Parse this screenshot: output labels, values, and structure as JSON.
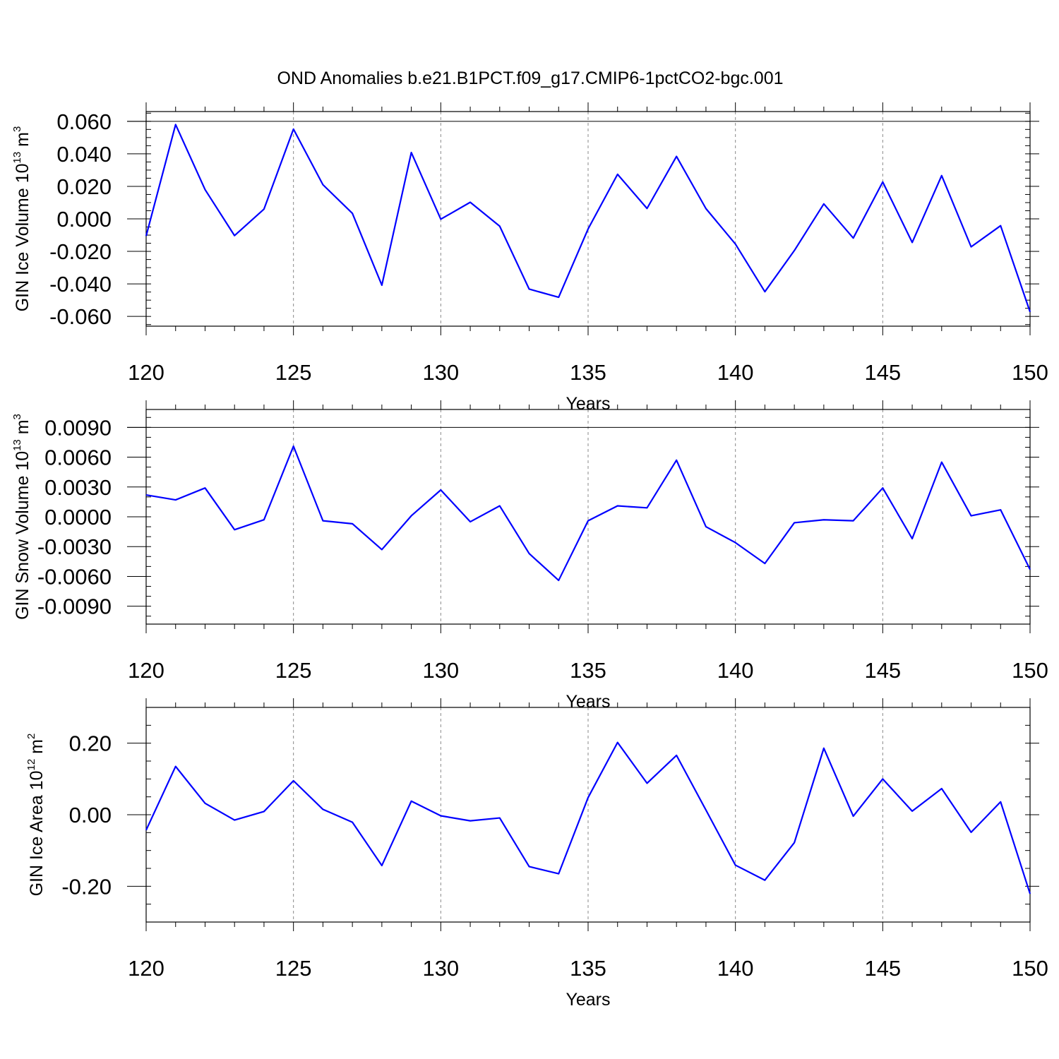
{
  "title": "OND Anomalies b.e21.B1PCT.f09_g17.CMIP6-1pctCO2-bgc.001",
  "colors": {
    "line": "#0000ff",
    "axis": "#000000",
    "grid": "#888888",
    "background": "#ffffff"
  },
  "chart_data": [
    {
      "type": "line",
      "xlabel": "Years",
      "ylabel": {
        "text": "GIN Ice Volume 10",
        "sup": "13",
        "unit": " m",
        "unit_sup": "3"
      },
      "xlim": [
        120,
        150
      ],
      "ylim": [
        -0.066,
        0.066
      ],
      "xticks": [
        "120",
        "125",
        "130",
        "135",
        "140",
        "145",
        "150"
      ],
      "yticks": [
        {
          "value": 0.06,
          "label": "0.060"
        },
        {
          "value": 0.04,
          "label": "0.040"
        },
        {
          "value": 0.02,
          "label": "0.020"
        },
        {
          "value": 0.0,
          "label": "0.000"
        },
        {
          "value": -0.02,
          "label": "-0.020"
        },
        {
          "value": -0.04,
          "label": "-0.040"
        },
        {
          "value": -0.06,
          "label": "-0.060"
        }
      ],
      "yminor_step": 0.005,
      "hline": 0.06,
      "x": [
        120,
        121,
        122,
        123,
        124,
        125,
        126,
        127,
        128,
        129,
        130,
        131,
        132,
        133,
        134,
        135,
        136,
        137,
        138,
        139,
        140,
        141,
        142,
        143,
        144,
        145,
        146,
        147,
        148,
        149,
        150
      ],
      "series": [
        {
          "values": [
            -0.0105,
            0.058,
            0.018,
            -0.0103,
            0.006,
            0.0552,
            0.021,
            0.0034,
            -0.0408,
            0.0408,
            -0.0002,
            0.0102,
            -0.0045,
            -0.0432,
            -0.0482,
            -0.0062,
            0.0274,
            0.0064,
            0.0384,
            0.0063,
            -0.0155,
            -0.0448,
            -0.0195,
            0.0092,
            -0.0118,
            0.0227,
            -0.0145,
            0.0266,
            -0.0172,
            -0.0042,
            -0.0572
          ]
        }
      ]
    },
    {
      "type": "line",
      "xlabel": "Years",
      "ylabel": {
        "text": "GIN Snow Volume 10",
        "sup": "13",
        "unit": " m",
        "unit_sup": "3"
      },
      "xlim": [
        120,
        150
      ],
      "ylim": [
        -0.0108,
        0.0108
      ],
      "xticks": [
        "120",
        "125",
        "130",
        "135",
        "140",
        "145",
        "150"
      ],
      "yticks": [
        {
          "value": 0.009,
          "label": "0.0090"
        },
        {
          "value": 0.006,
          "label": "0.0060"
        },
        {
          "value": 0.003,
          "label": "0.0030"
        },
        {
          "value": 0.0,
          "label": "0.0000"
        },
        {
          "value": -0.003,
          "label": "-0.0030"
        },
        {
          "value": -0.006,
          "label": "-0.0060"
        },
        {
          "value": -0.009,
          "label": "-0.0090"
        }
      ],
      "yminor_step": 0.001,
      "hline": 0.009,
      "x": [
        120,
        121,
        122,
        123,
        124,
        125,
        126,
        127,
        128,
        129,
        130,
        131,
        132,
        133,
        134,
        135,
        136,
        137,
        138,
        139,
        140,
        141,
        142,
        143,
        144,
        145,
        146,
        147,
        148,
        149,
        150
      ],
      "series": [
        {
          "values": [
            0.0022,
            0.0017,
            0.0029,
            -0.0013,
            -0.0003,
            0.0071,
            -0.0004,
            -0.0007,
            -0.0033,
            0.0001,
            0.0027,
            -0.0005,
            0.0011,
            -0.0037,
            -0.0064,
            -0.0004,
            0.0011,
            0.0009,
            0.0057,
            -0.001,
            -0.0026,
            -0.0047,
            -0.0006,
            -0.0003,
            -0.0004,
            0.0029,
            -0.0022,
            0.0055,
            0.0001,
            0.0007,
            -0.0053
          ]
        }
      ]
    },
    {
      "type": "line",
      "xlabel": "Years",
      "ylabel": {
        "text": "GIN Ice Area 10",
        "sup": "12",
        "unit": " m",
        "unit_sup": "2"
      },
      "xlim": [
        120,
        150
      ],
      "ylim": [
        -0.3,
        0.3
      ],
      "xticks": [
        "120",
        "125",
        "130",
        "135",
        "140",
        "145",
        "150"
      ],
      "yticks": [
        {
          "value": 0.2,
          "label": "0.20"
        },
        {
          "value": 0.0,
          "label": "0.00"
        },
        {
          "value": -0.2,
          "label": "-0.20"
        }
      ],
      "yminor_step": 0.05,
      "hline": null,
      "x": [
        120,
        121,
        122,
        123,
        124,
        125,
        126,
        127,
        128,
        129,
        130,
        131,
        132,
        133,
        134,
        135,
        136,
        137,
        138,
        139,
        140,
        141,
        142,
        143,
        144,
        145,
        146,
        147,
        148,
        149,
        150
      ],
      "series": [
        {
          "values": [
            -0.043,
            0.135,
            0.032,
            -0.015,
            0.009,
            0.095,
            0.015,
            -0.021,
            -0.142,
            0.038,
            -0.003,
            -0.017,
            -0.009,
            -0.145,
            -0.165,
            0.048,
            0.202,
            0.088,
            0.166,
            0.013,
            -0.141,
            -0.183,
            -0.078,
            0.186,
            -0.004,
            0.1,
            0.01,
            0.073,
            -0.049,
            0.036,
            -0.221
          ]
        }
      ]
    }
  ]
}
